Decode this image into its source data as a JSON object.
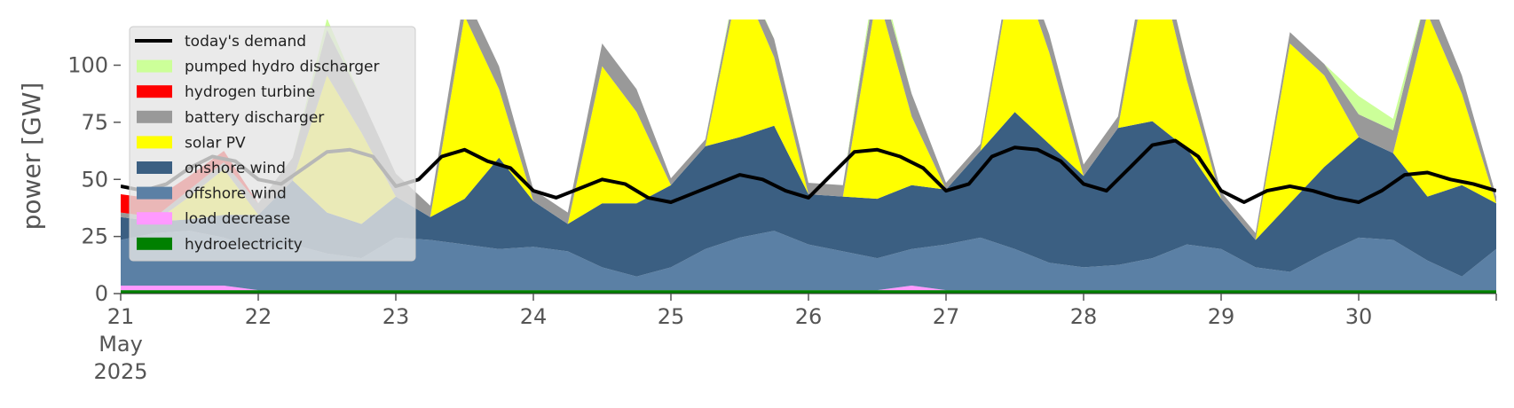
{
  "chart_data": {
    "type": "area",
    "title": "",
    "xlabel": "",
    "ylabel": "power [GW]",
    "ylim": [
      0,
      120
    ],
    "xlim": [
      0,
      240
    ],
    "yticks": [
      0,
      25,
      50,
      75,
      100
    ],
    "x_ticks": [
      {
        "label": "21",
        "label2": "May",
        "label3": "2025",
        "value": 0
      },
      {
        "label": "22",
        "value": 24
      },
      {
        "label": "23",
        "value": 48
      },
      {
        "label": "24",
        "value": 72
      },
      {
        "label": "25",
        "value": 96
      },
      {
        "label": "26",
        "value": 120
      },
      {
        "label": "27",
        "value": 144
      },
      {
        "label": "28",
        "value": 168
      },
      {
        "label": "29",
        "value": 192
      },
      {
        "label": "30",
        "value": 216
      }
    ],
    "legend_position": "upper-left",
    "grid": false,
    "x": [
      0,
      6,
      12,
      18,
      24,
      30,
      36,
      42,
      48,
      54,
      60,
      66,
      72,
      78,
      84,
      90,
      96,
      102,
      108,
      114,
      120,
      126,
      132,
      138,
      144,
      150,
      156,
      162,
      168,
      174,
      180,
      186,
      192,
      198,
      204,
      210,
      216,
      222,
      228,
      234,
      240
    ],
    "stack_series": [
      {
        "name": "hydroelectricity",
        "color": "#008000",
        "values": [
          1.5,
          1.5,
          1.5,
          1.5,
          1.5,
          1.5,
          1.5,
          1.5,
          1.5,
          1.5,
          1.5,
          1.5,
          1.5,
          1.5,
          1.5,
          1.5,
          1.5,
          1.5,
          1.5,
          1.5,
          1.5,
          1.5,
          1.5,
          1.5,
          1.5,
          1.5,
          1.5,
          1.5,
          1.5,
          1.5,
          1.5,
          1.5,
          1.5,
          1.5,
          1.5,
          1.5,
          1.5,
          1.5,
          1.5,
          1.5,
          1.5
        ]
      },
      {
        "name": "load decrease",
        "color": "#ff99ff",
        "values": [
          2,
          2,
          2,
          2,
          0,
          0,
          0,
          0,
          0,
          0,
          0,
          0,
          0,
          0,
          0,
          0,
          0,
          0,
          0,
          0,
          0,
          0,
          0,
          2,
          0,
          0,
          0,
          0,
          0,
          0,
          0,
          0,
          0,
          0,
          0,
          0,
          0,
          0,
          0,
          0,
          0
        ]
      },
      {
        "name": "offshore wind",
        "color": "#5b80a5",
        "values": [
          20,
          23,
          24,
          21,
          18,
          20,
          16,
          14,
          23,
          22,
          20,
          18,
          19,
          17,
          10,
          6,
          10,
          18,
          23,
          26,
          20,
          17,
          14,
          16,
          20,
          23,
          18,
          12,
          10,
          11,
          14,
          20,
          18,
          10,
          8,
          16,
          23,
          22,
          13,
          6,
          18
        ]
      },
      {
        "name": "onshore wind",
        "color": "#3b5f82",
        "values": [
          10,
          5,
          5,
          10,
          15,
          28,
          18,
          15,
          18,
          10,
          20,
          40,
          20,
          12,
          28,
          32,
          36,
          45,
          44,
          46,
          22,
          24,
          26,
          28,
          24,
          38,
          60,
          52,
          40,
          60,
          60,
          42,
          22,
          12,
          30,
          38,
          44,
          38,
          28,
          40,
          20
        ]
      },
      {
        "name": "solar PV",
        "color": "#ffff00",
        "values": [
          0,
          0,
          10,
          20,
          0,
          0,
          60,
          40,
          0,
          0,
          80,
          30,
          0,
          0,
          60,
          40,
          0,
          0,
          70,
          30,
          0,
          0,
          90,
          30,
          0,
          0,
          70,
          40,
          0,
          0,
          80,
          30,
          0,
          0,
          70,
          40,
          0,
          0,
          80,
          40,
          0
        ]
      },
      {
        "name": "battery discharger",
        "color": "#999999",
        "values": [
          2,
          2,
          3,
          3,
          5,
          10,
          20,
          15,
          10,
          5,
          10,
          10,
          5,
          5,
          10,
          10,
          3,
          3,
          5,
          8,
          5,
          5,
          10,
          10,
          3,
          3,
          5,
          8,
          5,
          5,
          8,
          8,
          3,
          3,
          5,
          5,
          10,
          10,
          10,
          8,
          3
        ]
      },
      {
        "name": "hydrogen turbine",
        "color": "#ff0000",
        "values": [
          8,
          8,
          6,
          5,
          0,
          0,
          0,
          0,
          0,
          0,
          0,
          0,
          0,
          0,
          0,
          0,
          0,
          0,
          0,
          0,
          0,
          0,
          0,
          0,
          0,
          0,
          0,
          0,
          0,
          0,
          0,
          0,
          0,
          0,
          0,
          0,
          0,
          0,
          0,
          0,
          0
        ]
      },
      {
        "name": "pumped hydro discharger",
        "color": "#ccff99",
        "values": [
          0,
          0,
          0,
          0,
          0,
          0,
          5,
          0,
          0,
          0,
          0,
          0,
          0,
          0,
          0,
          0,
          0,
          0,
          2,
          0,
          0,
          0,
          4,
          0,
          0,
          0,
          0,
          0,
          0,
          0,
          0,
          0,
          0,
          0,
          0,
          0,
          8,
          5,
          0,
          0,
          0
        ]
      }
    ],
    "demand": {
      "name": "today's demand",
      "color": "#000000",
      "x": [
        0,
        4,
        8,
        12,
        16,
        20,
        24,
        28,
        32,
        36,
        40,
        44,
        48,
        52,
        56,
        60,
        64,
        68,
        72,
        76,
        80,
        84,
        88,
        92,
        96,
        100,
        104,
        108,
        112,
        116,
        120,
        124,
        128,
        132,
        136,
        140,
        144,
        148,
        152,
        156,
        160,
        164,
        168,
        172,
        176,
        180,
        184,
        188,
        192,
        196,
        200,
        204,
        208,
        212,
        216,
        220,
        224,
        228,
        232,
        236,
        240
      ],
      "values": [
        47,
        45,
        48,
        55,
        60,
        58,
        50,
        48,
        55,
        62,
        63,
        60,
        47,
        50,
        60,
        63,
        58,
        55,
        45,
        42,
        46,
        50,
        48,
        42,
        40,
        44,
        48,
        52,
        50,
        45,
        42,
        52,
        62,
        63,
        60,
        55,
        45,
        48,
        60,
        64,
        63,
        58,
        48,
        45,
        55,
        65,
        67,
        60,
        45,
        40,
        45,
        47,
        45,
        42,
        40,
        45,
        52,
        53,
        50,
        48,
        45
      ]
    },
    "legend": [
      "today's demand",
      "pumped hydro discharger",
      "hydrogen turbine",
      "battery discharger",
      "solar PV",
      "onshore wind",
      "offshore wind",
      "load decrease",
      "hydroelectricity"
    ]
  }
}
